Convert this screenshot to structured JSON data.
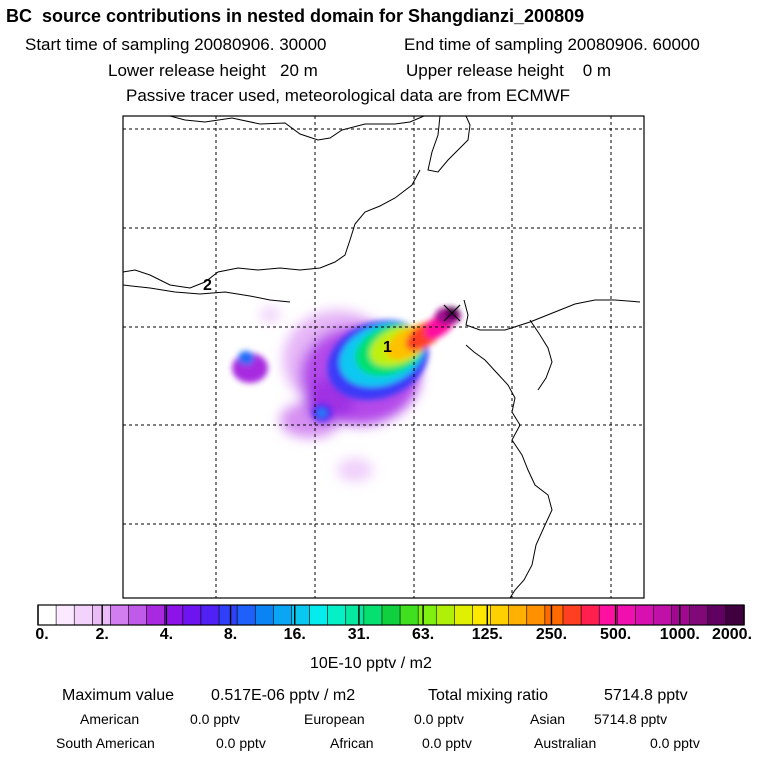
{
  "header": {
    "title": "BC  source contributions in nested domain for Shangdianzi_200809",
    "start_time": "Start time of sampling 20080906. 30000",
    "end_time": "End time of sampling 20080906. 60000",
    "lower_release": "Lower release height   20 m",
    "upper_release": "Upper release height    0 m",
    "tracer_note": "Passive tracer used, meteorological data are from ECMWF"
  },
  "map": {
    "labels": [
      "1",
      "2"
    ],
    "colorbar": {
      "ticks": [
        "0.",
        "2.",
        "4.",
        "8.",
        "16.",
        "31.",
        "63.",
        "125.",
        "250.",
        "500.",
        "1000.",
        "2000."
      ],
      "colors": [
        "#ffffff",
        "#fbeaff",
        "#f3d3fb",
        "#ebbdf7",
        "#d27ef0",
        "#c05ae8",
        "#a829e0",
        "#8c14e8",
        "#6e14f0",
        "#5020f5",
        "#3040f8",
        "#2060fa",
        "#0a84f5",
        "#0aa6f5",
        "#08c8f2",
        "#04ecec",
        "#06f0c8",
        "#04e8a0",
        "#06e070",
        "#10d040",
        "#40e020",
        "#80f010",
        "#b0f008",
        "#e0f000",
        "#ffe800",
        "#ffd000",
        "#ffb000",
        "#ff9000",
        "#ff6a00",
        "#ff4020",
        "#ff2050",
        "#ff10a0",
        "#f010b0",
        "#d810b0",
        "#c010a8",
        "#a00890",
        "#800878",
        "#600060",
        "#400040"
      ],
      "units": "10E-10 pptv / m2"
    }
  },
  "footer": {
    "max_label": "Maximum value",
    "max_value": "0.517E-06 pptv / m2",
    "total_label": "Total mixing ratio",
    "total_value": "5714.8 pptv",
    "regions": [
      {
        "name": "American",
        "value": "0.0 pptv"
      },
      {
        "name": "European",
        "value": "0.0 pptv"
      },
      {
        "name": "Asian",
        "value": "5714.8 pptv"
      },
      {
        "name": "South American",
        "value": "0.0 pptv"
      },
      {
        "name": "African",
        "value": "0.0 pptv"
      },
      {
        "name": "Australian",
        "value": "0.0 pptv"
      }
    ]
  }
}
